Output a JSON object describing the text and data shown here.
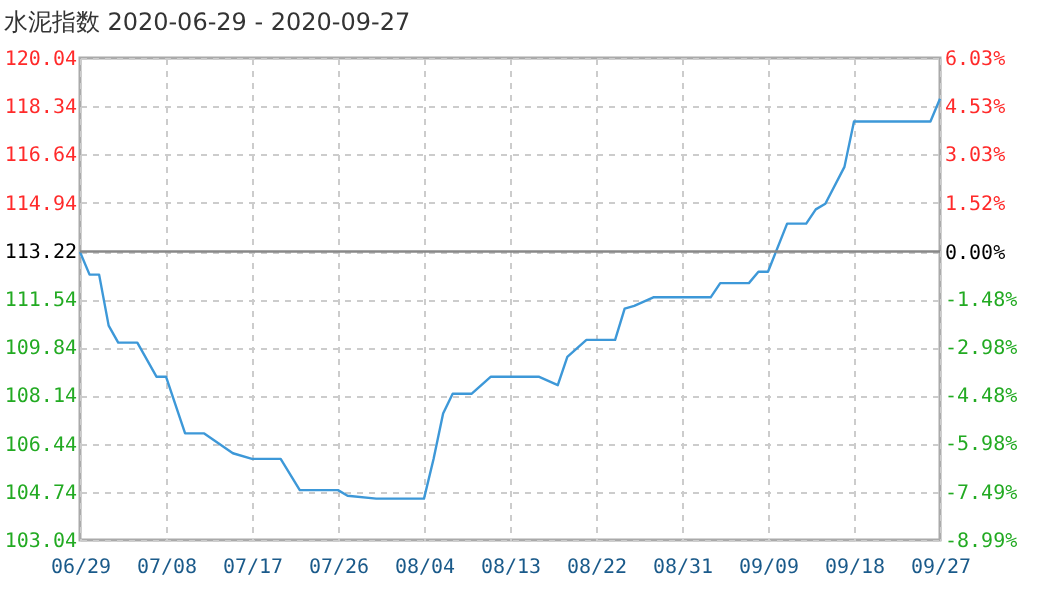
{
  "chart_data": {
    "type": "line",
    "title": "水泥指数 2020-06-29 - 2020-09-27",
    "x": [
      "2020-06-29",
      "2020-06-30",
      "2020-07-01",
      "2020-07-02",
      "2020-07-03",
      "2020-07-05",
      "2020-07-07",
      "2020-07-08",
      "2020-07-10",
      "2020-07-12",
      "2020-07-15",
      "2020-07-17",
      "2020-07-20",
      "2020-07-22",
      "2020-07-26",
      "2020-07-27",
      "2020-07-30",
      "2020-08-04",
      "2020-08-05",
      "2020-08-06",
      "2020-08-07",
      "2020-08-09",
      "2020-08-11",
      "2020-08-16",
      "2020-08-18",
      "2020-08-19",
      "2020-08-20",
      "2020-08-21",
      "2020-08-24",
      "2020-08-25",
      "2020-08-26",
      "2020-08-28",
      "2020-09-03",
      "2020-09-04",
      "2020-09-07",
      "2020-09-08",
      "2020-09-09",
      "2020-09-11",
      "2020-09-13",
      "2020-09-14",
      "2020-09-15",
      "2020-09-17",
      "2020-09-18",
      "2020-09-21",
      "2020-09-26",
      "2020-09-27"
    ],
    "series": [
      {
        "color": "#3d98d8",
        "values": [
          113.2,
          112.4,
          112.4,
          110.6,
          110.0,
          110.0,
          108.8,
          108.8,
          106.8,
          106.8,
          106.1,
          105.9,
          105.9,
          104.8,
          104.8,
          104.6,
          104.5,
          104.5,
          105.9,
          107.5,
          108.2,
          108.2,
          108.8,
          108.8,
          108.5,
          109.5,
          109.8,
          110.1,
          110.1,
          111.2,
          111.3,
          111.6,
          111.6,
          112.1,
          112.1,
          112.5,
          112.5,
          114.2,
          114.2,
          114.7,
          114.9,
          116.2,
          117.8,
          117.8,
          117.8,
          118.6
        ]
      }
    ],
    "xlim": [
      "2020-06-29",
      "2020-09-27"
    ],
    "xticks": [
      {
        "value": "2020-06-29",
        "label": "06/29"
      },
      {
        "value": "2020-07-08",
        "label": "07/08"
      },
      {
        "value": "2020-07-17",
        "label": "07/17"
      },
      {
        "value": "2020-07-26",
        "label": "07/26"
      },
      {
        "value": "2020-08-04",
        "label": "08/04"
      },
      {
        "value": "2020-08-13",
        "label": "08/13"
      },
      {
        "value": "2020-08-22",
        "label": "08/22"
      },
      {
        "value": "2020-08-31",
        "label": "08/31"
      },
      {
        "value": "2020-09-09",
        "label": "09/09"
      },
      {
        "value": "2020-09-18",
        "label": "09/18"
      },
      {
        "value": "2020-09-27",
        "label": "09/27"
      }
    ],
    "ylim": [
      103.04,
      120.04
    ],
    "yticks": [
      103.04,
      104.74,
      106.44,
      108.14,
      109.84,
      111.54,
      113.22,
      114.94,
      116.64,
      118.34,
      120.04
    ],
    "y2lim": [
      -8.99,
      6.03
    ],
    "y2ticks": [
      {
        "value": -8.99,
        "label": "-8.99%"
      },
      {
        "value": -7.49,
        "label": "-7.49%"
      },
      {
        "value": -5.98,
        "label": "-5.98%"
      },
      {
        "value": -4.48,
        "label": "-4.48%"
      },
      {
        "value": -2.98,
        "label": "-2.98%"
      },
      {
        "value": -1.48,
        "label": "-1.48%"
      },
      {
        "value": 0,
        "label": "0.00%"
      },
      {
        "value": 1.52,
        "label": "1.52%"
      },
      {
        "value": 3.03,
        "label": "3.03%"
      },
      {
        "value": 4.53,
        "label": "4.53%"
      },
      {
        "value": 6.03,
        "label": "6.03%"
      }
    ],
    "ref_lines": [
      {
        "axis": "y2",
        "value": 0,
        "color": "#888888"
      }
    ],
    "grid": true,
    "marker": "none",
    "line_style": "solid"
  }
}
